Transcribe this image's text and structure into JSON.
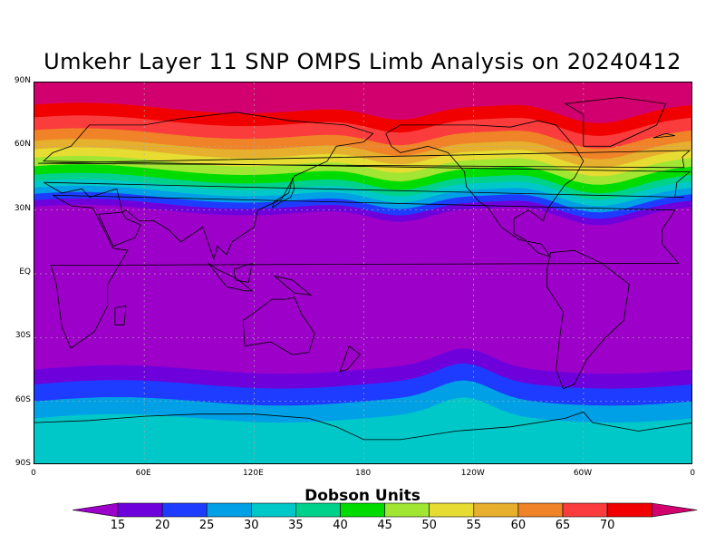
{
  "title": "Umkehr Layer 11 SNP OMPS Limb Analysis on 20240412",
  "lat_ticks": [
    "90N",
    "60N",
    "30N",
    "EQ",
    "30S",
    "60S",
    "90S"
  ],
  "lon_ticks": [
    "0",
    "60E",
    "120E",
    "180",
    "120W",
    "60W",
    "0"
  ],
  "colorbar": {
    "title": "Dobson Units",
    "levels": [
      "15",
      "20",
      "25",
      "30",
      "35",
      "40",
      "45",
      "50",
      "55",
      "60",
      "65",
      "70"
    ],
    "colors": [
      "#9d00c8",
      "#6e00dc",
      "#1e3cff",
      "#00a0e6",
      "#00c8c8",
      "#00d28c",
      "#00dc00",
      "#a0e632",
      "#e6dc32",
      "#e6af2d",
      "#f08228",
      "#fa3c3c",
      "#f00000",
      "#d2006e"
    ]
  },
  "field_colors": {
    "low": "#9d00c8",
    "high_arctic": "#d2006e",
    "antarctic": "#00c8c8"
  }
}
